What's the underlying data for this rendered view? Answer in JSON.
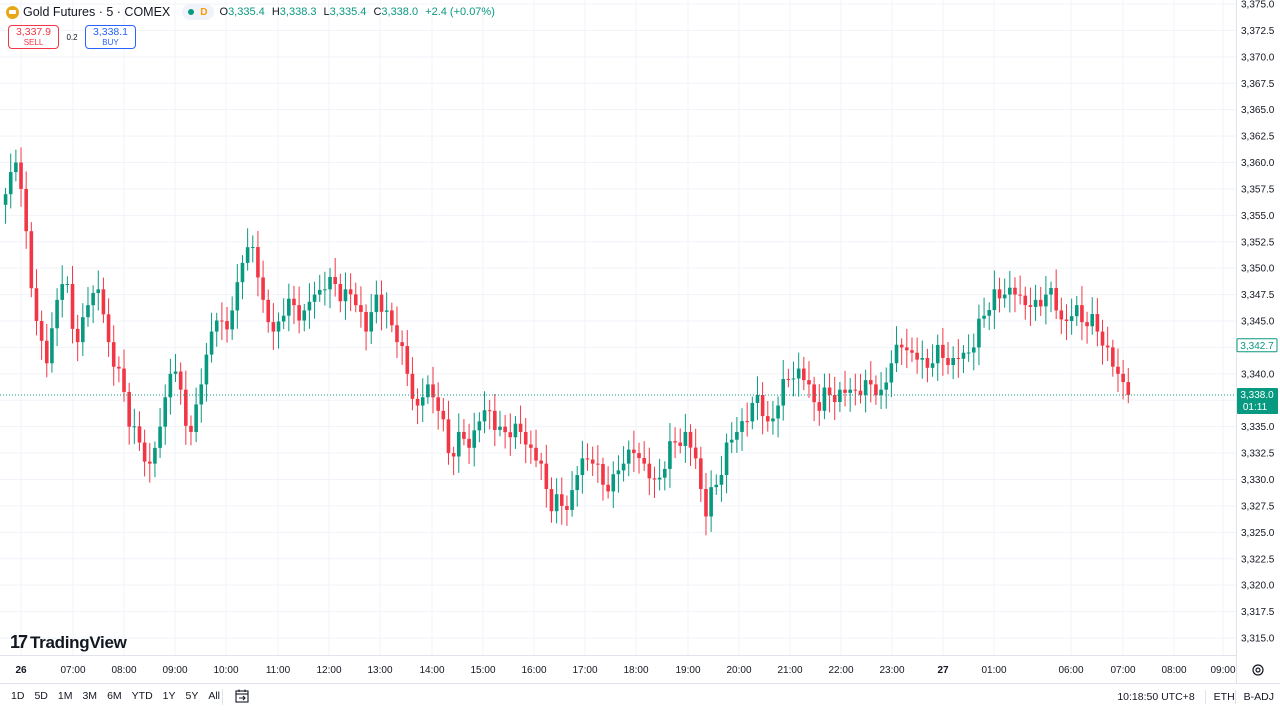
{
  "header": {
    "symbol_title": "Gold Futures · 5 · COMEX",
    "status_badge": "D",
    "ohlc": {
      "o_label": "O",
      "o": "3,335.4",
      "h_label": "H",
      "h": "3,338.3",
      "l_label": "L",
      "l": "3,335.4",
      "c_label": "C",
      "c": "3,338.0",
      "change": "+2.4 (+0.07%)"
    }
  },
  "trade": {
    "sell_price": "3,337.9",
    "sell_label": "SELL",
    "spread": "0.2",
    "buy_price": "3,338.1",
    "buy_label": "BUY"
  },
  "branding": {
    "logo_text": "TradingView"
  },
  "price_axis": {
    "ticks": [
      "3,375.0",
      "3,372.5",
      "3,370.0",
      "3,367.5",
      "3,365.0",
      "3,362.5",
      "3,360.0",
      "3,357.5",
      "3,355.0",
      "3,352.5",
      "3,350.0",
      "3,347.5",
      "3,345.0",
      "3,342.5",
      "3,340.0",
      "3,337.5",
      "3,335.0",
      "3,332.5",
      "3,330.0",
      "3,327.5",
      "3,325.0",
      "3,322.5",
      "3,320.0",
      "3,317.5",
      "3,315.0"
    ],
    "current_price_label": "3,338.0",
    "countdown": "01:11",
    "marker_label": "3,342.7"
  },
  "time_axis": {
    "ticks": [
      "26",
      "07:00",
      "08:00",
      "09:00",
      "10:00",
      "11:00",
      "12:00",
      "13:00",
      "14:00",
      "15:00",
      "16:00",
      "17:00",
      "18:00",
      "19:00",
      "20:00",
      "21:00",
      "22:00",
      "23:00",
      "27",
      "01:00",
      "06:00",
      "07:00",
      "08:00",
      "09:00"
    ]
  },
  "bottom_bar": {
    "ranges": [
      "1D",
      "5D",
      "1M",
      "3M",
      "6M",
      "YTD",
      "1Y",
      "5Y",
      "All"
    ],
    "clock": "10:18:50 UTC+8",
    "session": "ETH",
    "adjust": "B-ADJ"
  },
  "colors": {
    "up": "#089981",
    "down": "#f23645",
    "grid": "#f0f3fa",
    "text": "#131722",
    "accent_buy": "#2962ff"
  },
  "icons": [
    "gold-coin-icon",
    "date-range-icon",
    "settings-icon"
  ],
  "chart_data": {
    "type": "candlestick",
    "title": "Gold Futures · 5 · COMEX",
    "ylim": [
      3315.0,
      3375.0
    ],
    "x_ticks": [
      "26",
      "07:00",
      "08:00",
      "09:00",
      "10:00",
      "11:00",
      "12:00",
      "13:00",
      "14:00",
      "15:00",
      "16:00",
      "17:00",
      "18:00",
      "19:00",
      "20:00",
      "21:00",
      "22:00",
      "23:00",
      "27",
      "01:00",
      "06:00",
      "07:00",
      "08:00",
      "09:00"
    ],
    "interval": "5 min",
    "last_price": 3338.0,
    "reference_price": 3342.7,
    "close_path": [
      [
        0,
        3357.0
      ],
      [
        2,
        3360.0
      ],
      [
        4,
        3353.5
      ],
      [
        6,
        3345.0
      ],
      [
        8,
        3341.0
      ],
      [
        10,
        3347.0
      ],
      [
        12,
        3348.5
      ],
      [
        14,
        3343.0
      ],
      [
        16,
        3346.5
      ],
      [
        18,
        3348.0
      ],
      [
        20,
        3343.0
      ],
      [
        22,
        3340.5
      ],
      [
        24,
        3335.0
      ],
      [
        26,
        3333.5
      ],
      [
        28,
        3331.5
      ],
      [
        30,
        3335.0
      ],
      [
        32,
        3340.0
      ],
      [
        34,
        3338.5
      ],
      [
        36,
        3334.5
      ],
      [
        38,
        3339.0
      ],
      [
        40,
        3344.0
      ],
      [
        42,
        3345.0
      ],
      [
        44,
        3346.0
      ],
      [
        46,
        3350.5
      ],
      [
        48,
        3352.0
      ],
      [
        50,
        3347.0
      ],
      [
        52,
        3344.0
      ],
      [
        54,
        3345.5
      ],
      [
        56,
        3346.5
      ],
      [
        58,
        3346.0
      ],
      [
        60,
        3347.5
      ],
      [
        62,
        3348.0
      ],
      [
        64,
        3348.5
      ],
      [
        66,
        3348.0
      ],
      [
        68,
        3346.5
      ],
      [
        70,
        3344.0
      ],
      [
        72,
        3347.5
      ],
      [
        74,
        3346.0
      ],
      [
        76,
        3343.0
      ],
      [
        78,
        3340.0
      ],
      [
        80,
        3337.0
      ],
      [
        82,
        3339.0
      ],
      [
        84,
        3336.5
      ],
      [
        86,
        3332.5
      ],
      [
        88,
        3334.5
      ],
      [
        90,
        3333.0
      ],
      [
        92,
        3335.5
      ],
      [
        94,
        3336.5
      ],
      [
        96,
        3335.0
      ],
      [
        98,
        3334.0
      ],
      [
        100,
        3334.5
      ],
      [
        102,
        3333.0
      ],
      [
        104,
        3331.5
      ],
      [
        106,
        3327.0
      ],
      [
        108,
        3327.5
      ],
      [
        110,
        3329.0
      ],
      [
        112,
        3332.0
      ],
      [
        114,
        3331.5
      ],
      [
        116,
        3329.5
      ],
      [
        118,
        3330.5
      ],
      [
        120,
        3331.5
      ],
      [
        122,
        3332.5
      ],
      [
        124,
        3331.5
      ],
      [
        126,
        3330.0
      ],
      [
        128,
        3331.0
      ],
      [
        130,
        3333.5
      ],
      [
        132,
        3334.5
      ],
      [
        134,
        3332.0
      ],
      [
        136,
        3326.5
      ],
      [
        138,
        3329.5
      ],
      [
        140,
        3333.5
      ],
      [
        142,
        3334.5
      ],
      [
        144,
        3335.5
      ],
      [
        146,
        3338.0
      ],
      [
        148,
        3335.5
      ],
      [
        150,
        3337.0
      ],
      [
        152,
        3339.5
      ],
      [
        154,
        3340.5
      ],
      [
        156,
        3339.0
      ],
      [
        158,
        3336.5
      ],
      [
        160,
        3338.0
      ],
      [
        162,
        3338.5
      ],
      [
        164,
        3338.5
      ],
      [
        166,
        3338.0
      ],
      [
        168,
        3339.0
      ],
      [
        170,
        3338.5
      ],
      [
        172,
        3341.0
      ],
      [
        174,
        3342.5
      ],
      [
        176,
        3342.0
      ],
      [
        178,
        3341.5
      ],
      [
        180,
        3341.0
      ],
      [
        182,
        3341.5
      ],
      [
        184,
        3341.5
      ],
      [
        186,
        3342.0
      ],
      [
        188,
        3342.5
      ],
      [
        190,
        3345.5
      ],
      [
        192,
        3348.0
      ],
      [
        194,
        3347.5
      ],
      [
        196,
        3347.5
      ],
      [
        198,
        3346.5
      ],
      [
        200,
        3347.0
      ],
      [
        202,
        3347.5
      ],
      [
        204,
        3346.0
      ],
      [
        206,
        3345.0
      ],
      [
        208,
        3346.5
      ],
      [
        210,
        3344.5
      ],
      [
        212,
        3344.0
      ],
      [
        214,
        3342.5
      ],
      [
        216,
        3340.0
      ],
      [
        218,
        3338.0
      ]
    ]
  }
}
